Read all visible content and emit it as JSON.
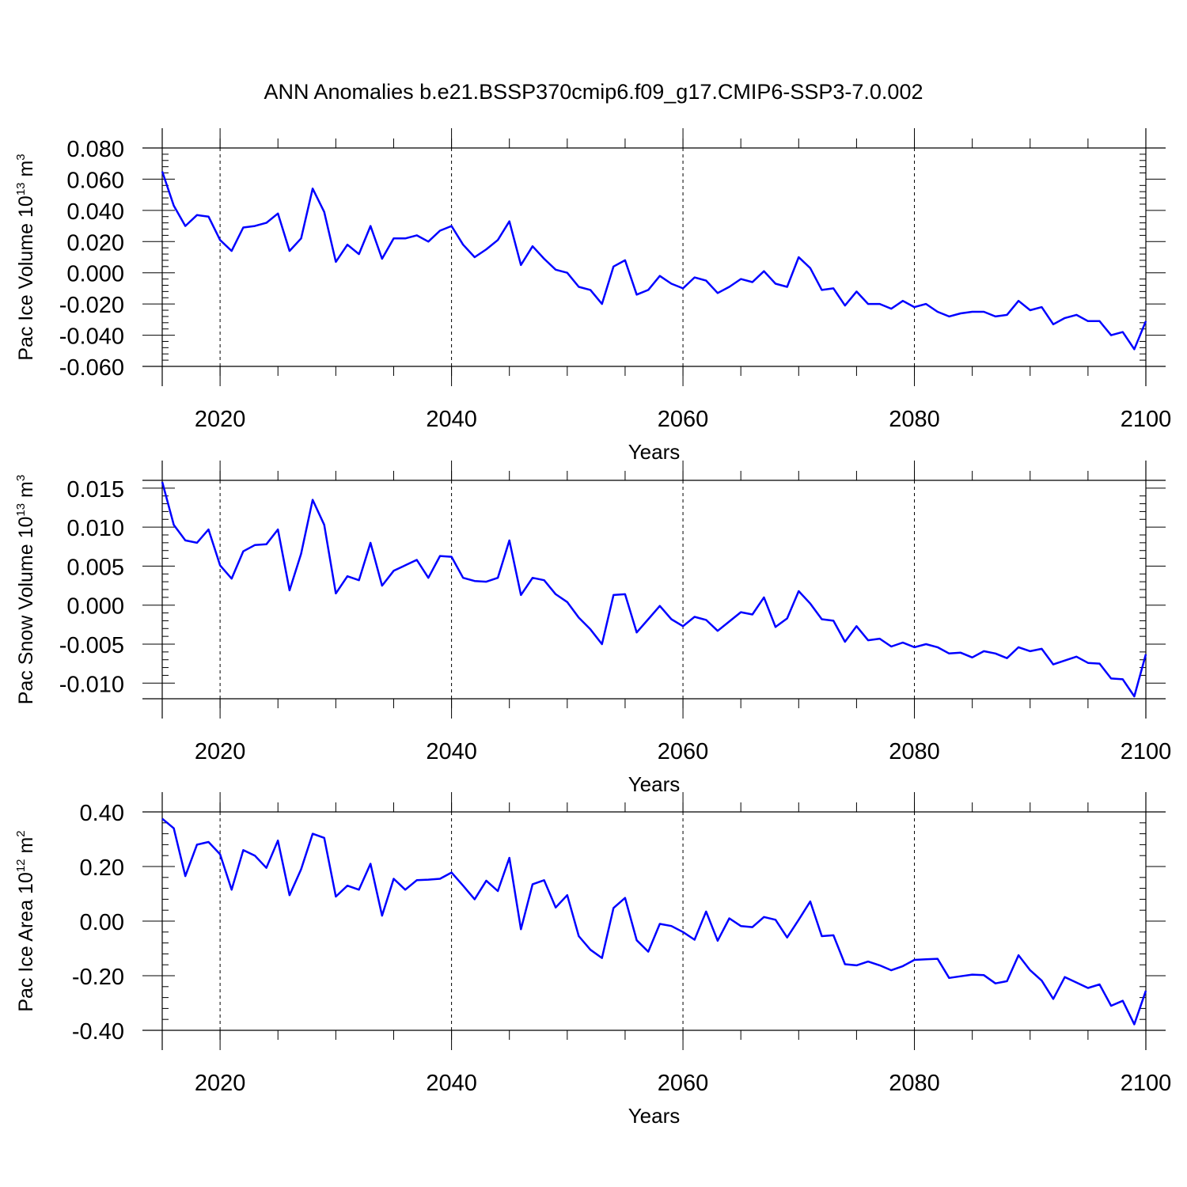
{
  "title": "ANN Anomalies b.e21.BSSP370cmip6.f09_g17.CMIP6-SSP3-7.0.002",
  "line_color": "#0000ff",
  "chart_data": [
    {
      "type": "line",
      "ylabel_prefix": "Pac Ice Volume 10",
      "ylabel_exp": "13",
      "ylabel_unit": " m",
      "ylabel_unit_exp": "3",
      "xlabel": "Years",
      "xlim": [
        2015,
        2100
      ],
      "ylim": [
        -0.06,
        0.08
      ],
      "xticks": [
        2020,
        2040,
        2060,
        2080,
        2100
      ],
      "xtick_labels": [
        "2020",
        "2040",
        "2060",
        "2080",
        "2100"
      ],
      "yticks": [
        -0.06,
        -0.04,
        -0.02,
        0,
        0.02,
        0.04,
        0.06,
        0.08
      ],
      "ytick_labels": [
        "-0.060",
        "-0.040",
        "-0.020",
        "0.000",
        "0.020",
        "0.040",
        "0.060",
        "0.080"
      ],
      "x_start": 2015,
      "values": [
        0.065,
        0.043,
        0.03,
        0.037,
        0.036,
        0.021,
        0.014,
        0.029,
        0.03,
        0.032,
        0.038,
        0.014,
        0.022,
        0.054,
        0.039,
        0.007,
        0.018,
        0.012,
        0.03,
        0.009,
        0.022,
        0.022,
        0.024,
        0.02,
        0.027,
        0.03,
        0.018,
        0.01,
        0.015,
        0.021,
        0.033,
        0.005,
        0.017,
        0.009,
        0.002,
        0.0,
        -0.009,
        -0.011,
        -0.02,
        0.004,
        0.008,
        -0.014,
        -0.011,
        -0.002,
        -0.007,
        -0.01,
        -0.003,
        -0.005,
        -0.013,
        -0.009,
        -0.004,
        -0.006,
        0.001,
        -0.007,
        -0.009,
        0.01,
        0.003,
        -0.011,
        -0.01,
        -0.021,
        -0.012,
        -0.02,
        -0.02,
        -0.023,
        -0.018,
        -0.022,
        -0.02,
        -0.025,
        -0.028,
        -0.026,
        -0.025,
        -0.025,
        -0.028,
        -0.027,
        -0.018,
        -0.024,
        -0.022,
        -0.033,
        -0.029,
        -0.027,
        -0.031,
        -0.031,
        -0.04,
        -0.038,
        -0.049,
        -0.031
      ]
    },
    {
      "type": "line",
      "ylabel_prefix": "Pac Snow Volume 10",
      "ylabel_exp": "13",
      "ylabel_unit": " m",
      "ylabel_unit_exp": "3",
      "xlabel": "Years",
      "xlim": [
        2015,
        2100
      ],
      "ylim": [
        -0.012,
        0.016
      ],
      "xticks": [
        2020,
        2040,
        2060,
        2080,
        2100
      ],
      "xtick_labels": [
        "2020",
        "2040",
        "2060",
        "2080",
        "2100"
      ],
      "yticks": [
        -0.01,
        -0.005,
        0,
        0.005,
        0.01,
        0.015
      ],
      "ytick_labels": [
        "-0.010",
        "-0.005",
        "0.000",
        "0.005",
        "0.010",
        "0.015"
      ],
      "x_start": 2015,
      "values": [
        0.0158,
        0.0103,
        0.0083,
        0.008,
        0.0097,
        0.0051,
        0.0034,
        0.0069,
        0.0077,
        0.0078,
        0.0097,
        0.0019,
        0.0066,
        0.0135,
        0.0103,
        0.0015,
        0.0037,
        0.0032,
        0.008,
        0.0025,
        0.0044,
        0.0051,
        0.0058,
        0.0035,
        0.0063,
        0.0062,
        0.0035,
        0.0031,
        0.003,
        0.0035,
        0.0083,
        0.0013,
        0.0035,
        0.0032,
        0.0014,
        0.0004,
        -0.0016,
        -0.0031,
        -0.005,
        0.0013,
        0.0014,
        -0.0035,
        -0.0018,
        -0.0001,
        -0.0018,
        -0.0027,
        -0.0015,
        -0.0019,
        -0.0033,
        -0.0021,
        -0.0009,
        -0.0012,
        0.001,
        -0.0028,
        -0.0017,
        0.0018,
        0.0002,
        -0.0018,
        -0.002,
        -0.0047,
        -0.0027,
        -0.0045,
        -0.0043,
        -0.0053,
        -0.0048,
        -0.0054,
        -0.005,
        -0.0054,
        -0.0062,
        -0.0061,
        -0.0067,
        -0.0059,
        -0.0062,
        -0.0068,
        -0.0054,
        -0.0059,
        -0.0056,
        -0.0076,
        -0.0071,
        -0.0066,
        -0.0074,
        -0.0075,
        -0.0094,
        -0.0095,
        -0.0117,
        -0.0063
      ]
    },
    {
      "type": "line",
      "ylabel_prefix": "Pac Ice Area 10",
      "ylabel_exp": "12",
      "ylabel_unit": " m",
      "ylabel_unit_exp": "2",
      "xlabel": "Years",
      "xlim": [
        2015,
        2100
      ],
      "ylim": [
        -0.4,
        0.4
      ],
      "xticks": [
        2020,
        2040,
        2060,
        2080,
        2100
      ],
      "xtick_labels": [
        "2020",
        "2040",
        "2060",
        "2080",
        "2100"
      ],
      "yticks": [
        -0.4,
        -0.2,
        0,
        0.2,
        0.4
      ],
      "ytick_labels": [
        "-0.40",
        "-0.20",
        "0.00",
        "0.20",
        "0.40"
      ],
      "x_start": 2015,
      "values": [
        0.375,
        0.34,
        0.165,
        0.28,
        0.29,
        0.245,
        0.115,
        0.26,
        0.24,
        0.195,
        0.295,
        0.095,
        0.19,
        0.32,
        0.305,
        0.09,
        0.13,
        0.115,
        0.21,
        0.02,
        0.155,
        0.115,
        0.15,
        0.152,
        0.155,
        0.178,
        0.13,
        0.08,
        0.148,
        0.11,
        0.232,
        -0.03,
        0.135,
        0.15,
        0.05,
        0.095,
        -0.055,
        -0.105,
        -0.135,
        0.048,
        0.085,
        -0.07,
        -0.112,
        -0.01,
        -0.018,
        -0.04,
        -0.068,
        0.035,
        -0.072,
        0.01,
        -0.018,
        -0.022,
        0.015,
        0.005,
        -0.06,
        0.005,
        0.072,
        -0.055,
        -0.052,
        -0.158,
        -0.162,
        -0.148,
        -0.162,
        -0.18,
        -0.165,
        -0.142,
        -0.14,
        -0.138,
        -0.208,
        -0.202,
        -0.196,
        -0.198,
        -0.228,
        -0.22,
        -0.125,
        -0.18,
        -0.218,
        -0.285,
        -0.205,
        -0.225,
        -0.245,
        -0.232,
        -0.31,
        -0.292,
        -0.378,
        -0.255
      ]
    }
  ]
}
